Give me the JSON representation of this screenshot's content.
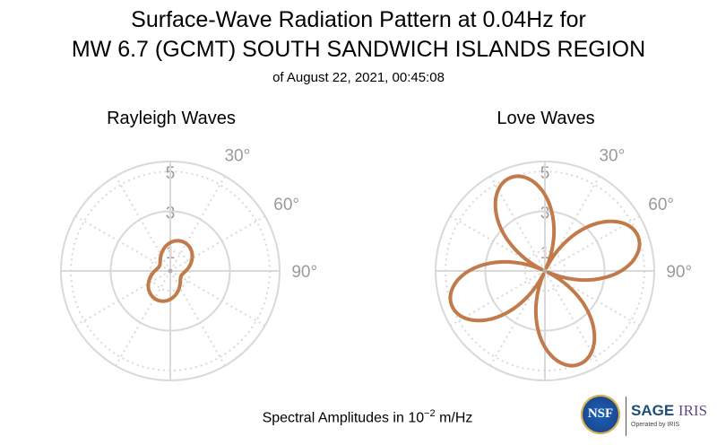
{
  "title": {
    "line1": "Surface-Wave Radiation Pattern at 0.04Hz for",
    "line2": "MW 6.7 (GCMT) SOUTH SANDWICH ISLANDS REGION",
    "line3": "of August 22, 2021, 00:45:08"
  },
  "footer": {
    "prefix": "Spectral Amplitudes in ",
    "base": "10",
    "exponent": "−2",
    "unit": " m/Hz"
  },
  "logos": {
    "nsf": "NSF",
    "sage": "SAGE",
    "iris": "IRIS",
    "operated_by": "Operated by IRIS"
  },
  "colors": {
    "pattern": "#c27a4a",
    "grid": "#d9d9d9",
    "tick_text": "#9a9a9a"
  },
  "chart_data": [
    {
      "type": "polar",
      "title": "Rayleigh Waves",
      "r_ticks": [
        "1",
        "3",
        "5"
      ],
      "r_max": 5.5,
      "angle_ticks": [
        "30°",
        "60°",
        "90°"
      ],
      "grid": true,
      "angle_zero": "north",
      "angle_direction": "clockwise",
      "pattern": {
        "kind": "two-lobe",
        "peak_amplitude": 1.6,
        "min_amplitude": 0.6,
        "peak_azimuth_deg": 25
      }
    },
    {
      "type": "polar",
      "title": "Love Waves",
      "r_ticks": [
        "1",
        "3",
        "5"
      ],
      "r_max": 5.5,
      "angle_ticks": [
        "30°",
        "60°",
        "90°"
      ],
      "grid": true,
      "angle_zero": "north",
      "angle_direction": "clockwise",
      "pattern": {
        "kind": "four-lobe",
        "peak_amplitude": 5.0,
        "lobe_azimuths_deg": [
          -20,
          70,
          160,
          250
        ]
      }
    }
  ]
}
